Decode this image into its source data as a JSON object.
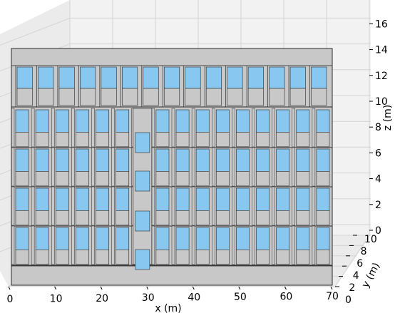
{
  "chart_data": {
    "type": "3d-building-facade",
    "xlabel": "x (m)",
    "ylabel": "y (m)",
    "zlabel": "z (m)",
    "x_ticks": [
      0,
      10,
      20,
      30,
      40,
      50,
      60,
      70
    ],
    "y_ticks": [
      0,
      2,
      4,
      6,
      8,
      10
    ],
    "z_ticks": [
      0,
      2,
      4,
      6,
      8,
      10,
      12,
      14,
      16
    ],
    "xlim": [
      0,
      70
    ],
    "ylim": [
      0,
      10
    ],
    "zlim": [
      0,
      16
    ],
    "grid": true,
    "colors": {
      "wall": "#c8c8c8",
      "window": "#88c8f0",
      "edge": "#2a2a2a",
      "pane_back": "#f2f2f2",
      "pane_side": "#ebebeb",
      "grid": "#d4d4d4"
    }
  }
}
